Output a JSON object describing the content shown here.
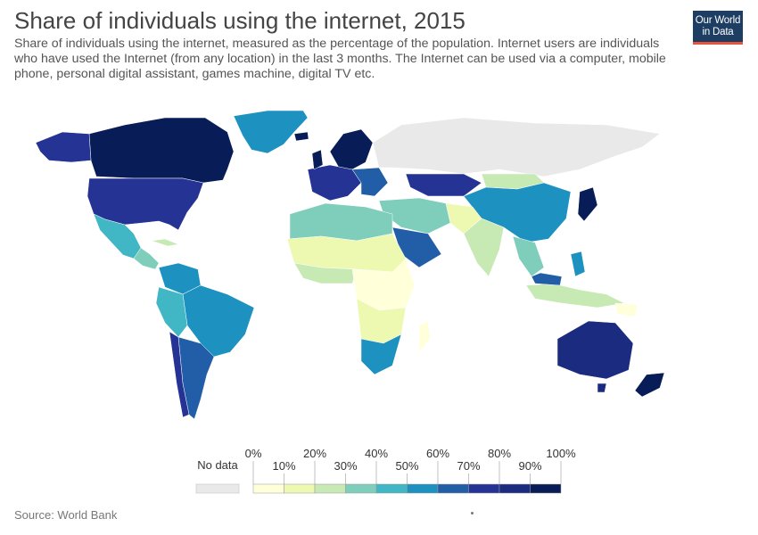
{
  "title": "Share of individuals using the internet, 2015",
  "subtitle": "Share of individuals using the internet, measured as the percentage of the population. Internet users are individuals who have used the Internet (from any location) in the last 3 months. The Internet can be used via a computer, mobile phone, personal digital assistant, games machine, digital TV etc.",
  "logo": {
    "line1": "Our World",
    "line2": "in Data",
    "colors": {
      "background": "#1d3d63",
      "accent": "#e8533a"
    }
  },
  "source": "Source: World Bank",
  "legend": {
    "no_data_label": "No data",
    "no_data_color": "#e9e9e9",
    "upper_ticks": [
      "0%",
      "20%",
      "40%",
      "60%",
      "80%",
      "100%"
    ],
    "lower_ticks": [
      "10%",
      "30%",
      "50%",
      "70%",
      "90%"
    ],
    "bins": [
      {
        "range": [
          0,
          10
        ],
        "color": "#ffffd9"
      },
      {
        "range": [
          10,
          20
        ],
        "color": "#edf8b1"
      },
      {
        "range": [
          20,
          30
        ],
        "color": "#c7e9b4"
      },
      {
        "range": [
          30,
          40
        ],
        "color": "#7fcdbb"
      },
      {
        "range": [
          40,
          50
        ],
        "color": "#41b6c4"
      },
      {
        "range": [
          50,
          60
        ],
        "color": "#1d91c0"
      },
      {
        "range": [
          60,
          70
        ],
        "color": "#225ea8"
      },
      {
        "range": [
          70,
          80
        ],
        "color": "#253494"
      },
      {
        "range": [
          80,
          90
        ],
        "color": "#1b2c80"
      },
      {
        "range": [
          90,
          100
        ],
        "color": "#081d58"
      }
    ]
  }
}
